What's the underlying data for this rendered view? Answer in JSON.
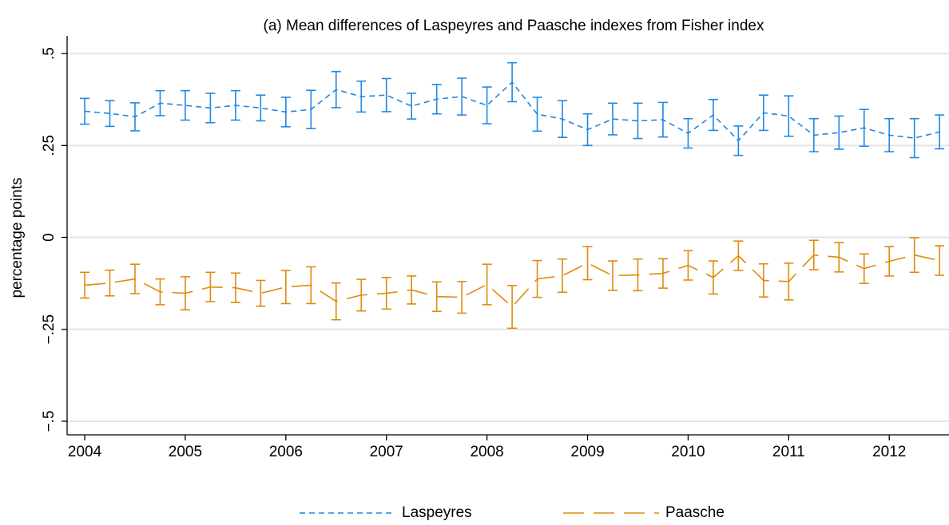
{
  "chart_data": {
    "type": "line",
    "title": "(a) Mean differences of Laspeyres and Paasche indexes from Fisher index",
    "y_label": "percentage points",
    "x": [
      2004,
      2004.25,
      2004.5,
      2004.75,
      2005,
      2005.25,
      2005.5,
      2005.75,
      2006,
      2006.25,
      2006.5,
      2006.75,
      2007,
      2007.25,
      2007.5,
      2007.75,
      2008,
      2008.25,
      2008.5,
      2008.75,
      2009,
      2009.25,
      2009.5,
      2009.75,
      2010,
      2010.25,
      2010.5,
      2010.75,
      2011,
      2011.25,
      2011.5,
      2011.75,
      2012,
      2012.25,
      2012.5
    ],
    "series": [
      {
        "name": "Laspeyres",
        "color": "#1e88e5",
        "dash": "short",
        "values": [
          0.343,
          0.337,
          0.328,
          0.365,
          0.359,
          0.352,
          0.359,
          0.352,
          0.341,
          0.348,
          0.402,
          0.383,
          0.387,
          0.357,
          0.376,
          0.383,
          0.359,
          0.422,
          0.335,
          0.322,
          0.293,
          0.322,
          0.317,
          0.32,
          0.283,
          0.333,
          0.263,
          0.339,
          0.33,
          0.278,
          0.285,
          0.298,
          0.278,
          0.27,
          0.287
        ],
        "errors": [
          0.035,
          0.035,
          0.038,
          0.034,
          0.04,
          0.04,
          0.04,
          0.035,
          0.04,
          0.052,
          0.049,
          0.042,
          0.045,
          0.035,
          0.04,
          0.05,
          0.05,
          0.053,
          0.046,
          0.05,
          0.043,
          0.043,
          0.048,
          0.047,
          0.04,
          0.042,
          0.04,
          0.048,
          0.055,
          0.045,
          0.045,
          0.05,
          0.045,
          0.053,
          0.046
        ]
      },
      {
        "name": "Paasche",
        "color": "#e08a0b",
        "dash": "long",
        "values": [
          -0.13,
          -0.124,
          -0.113,
          -0.148,
          -0.152,
          -0.135,
          -0.137,
          -0.152,
          -0.135,
          -0.13,
          -0.174,
          -0.157,
          -0.152,
          -0.143,
          -0.161,
          -0.163,
          -0.128,
          -0.189,
          -0.113,
          -0.104,
          -0.07,
          -0.104,
          -0.102,
          -0.098,
          -0.076,
          -0.109,
          -0.05,
          -0.117,
          -0.12,
          -0.048,
          -0.054,
          -0.085,
          -0.065,
          -0.048,
          -0.063
        ],
        "errors": [
          0.035,
          0.035,
          0.04,
          0.035,
          0.045,
          0.04,
          0.04,
          0.035,
          0.045,
          0.05,
          0.05,
          0.043,
          0.043,
          0.038,
          0.04,
          0.043,
          0.055,
          0.058,
          0.05,
          0.045,
          0.045,
          0.04,
          0.043,
          0.04,
          0.04,
          0.045,
          0.04,
          0.045,
          0.05,
          0.04,
          0.04,
          0.04,
          0.04,
          0.047,
          0.04
        ]
      }
    ],
    "xlim": [
      2003.825,
      2012.594
    ],
    "ylim": [
      -0.537,
      0.548
    ],
    "xticks": [
      2004,
      2005,
      2006,
      2007,
      2008,
      2009,
      2010,
      2011,
      2012
    ],
    "yticks": [
      {
        "value": 0.5,
        "label": ".5"
      },
      {
        "value": 0.25,
        "label": ".25"
      },
      0,
      {
        "value": -0.25,
        "label": "−.25"
      },
      {
        "value": -0.5,
        "label": "−.5"
      }
    ],
    "grid": true,
    "legend": "bottom"
  }
}
